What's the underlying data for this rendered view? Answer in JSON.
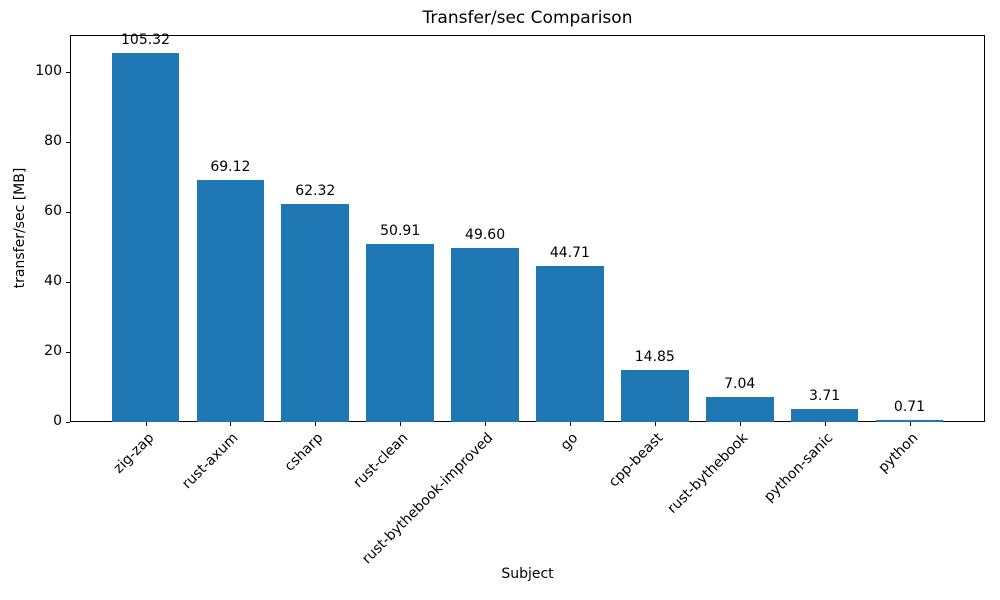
{
  "chart_data": {
    "type": "bar",
    "title": "Transfer/sec Comparison",
    "xlabel": "Subject",
    "ylabel": "transfer/sec [MB]",
    "categories": [
      "zig-zap",
      "rust-axum",
      "csharp",
      "rust-clean",
      "rust-bythebook-improved",
      "go",
      "cpp-beast",
      "rust-bythebook",
      "python-sanic",
      "python"
    ],
    "values": [
      105.32,
      69.12,
      62.32,
      50.91,
      49.6,
      44.71,
      14.85,
      7.04,
      3.71,
      0.71
    ],
    "value_labels": [
      "105.32",
      "69.12",
      "62.32",
      "50.91",
      "49.60",
      "44.71",
      "14.85",
      "7.04",
      "3.71",
      "0.71"
    ],
    "yticks": [
      0,
      20,
      40,
      60,
      80,
      100
    ],
    "ylim": [
      0,
      110.59
    ],
    "bar_color": "#1f77b4",
    "grid": false,
    "legend": "none",
    "bar_width_ratio": 0.8
  }
}
